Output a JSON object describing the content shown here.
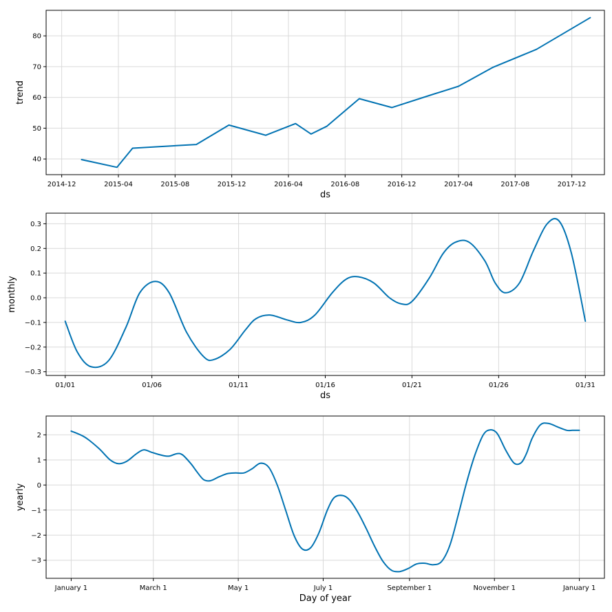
{
  "chart_data": [
    {
      "id": "trend",
      "type": "line",
      "title": "",
      "xlabel": "ds",
      "ylabel": "trend",
      "color": "#0072b2",
      "grid": true,
      "xlim": [
        -1.1,
        38.3
      ],
      "ylim": [
        34.9,
        88.3
      ],
      "x_ticks": [
        {
          "pos": 0,
          "label": "2014-12"
        },
        {
          "pos": 4,
          "label": "2015-04"
        },
        {
          "pos": 8,
          "label": "2015-08"
        },
        {
          "pos": 12,
          "label": "2015-12"
        },
        {
          "pos": 16,
          "label": "2016-04"
        },
        {
          "pos": 20,
          "label": "2016-08"
        },
        {
          "pos": 24,
          "label": "2016-12"
        },
        {
          "pos": 28,
          "label": "2017-04"
        },
        {
          "pos": 32,
          "label": "2017-08"
        },
        {
          "pos": 36,
          "label": "2017-12"
        }
      ],
      "y_ticks": [
        {
          "pos": 40,
          "label": "40"
        },
        {
          "pos": 50,
          "label": "50"
        },
        {
          "pos": 60,
          "label": "60"
        },
        {
          "pos": 70,
          "label": "70"
        },
        {
          "pos": 80,
          "label": "80"
        }
      ],
      "x_unit": "months since 2014-12",
      "series": [
        {
          "name": "trend",
          "x": [
            1.4,
            3.9,
            5.0,
            9.5,
            11.8,
            14.4,
            16.5,
            17.6,
            18.7,
            21.0,
            23.3,
            26.0,
            28.0,
            30.4,
            33.5,
            37.3
          ],
          "y": [
            39.8,
            37.3,
            43.5,
            44.7,
            51.0,
            47.7,
            51.5,
            48.1,
            50.6,
            59.6,
            56.7,
            60.7,
            63.6,
            69.7,
            75.6,
            85.9
          ]
        }
      ]
    },
    {
      "id": "monthly",
      "type": "line",
      "title": "",
      "xlabel": "ds",
      "ylabel": "monthly",
      "color": "#0072b2",
      "grid": true,
      "xlim": [
        -1.1,
        31.1
      ],
      "ylim": [
        -0.315,
        0.343
      ],
      "x_ticks": [
        {
          "pos": 0,
          "label": "01/01"
        },
        {
          "pos": 5,
          "label": "01/06"
        },
        {
          "pos": 10,
          "label": "01/11"
        },
        {
          "pos": 15,
          "label": "01/16"
        },
        {
          "pos": 20,
          "label": "01/21"
        },
        {
          "pos": 25,
          "label": "01/26"
        },
        {
          "pos": 30,
          "label": "01/31"
        }
      ],
      "y_ticks": [
        {
          "pos": -0.3,
          "label": "−0.3"
        },
        {
          "pos": -0.2,
          "label": "−0.2"
        },
        {
          "pos": -0.1,
          "label": "−0.1"
        },
        {
          "pos": 0.0,
          "label": "0.0"
        },
        {
          "pos": 0.1,
          "label": "0.1"
        },
        {
          "pos": 0.2,
          "label": "0.2"
        },
        {
          "pos": 0.3,
          "label": "0.3"
        }
      ],
      "x_unit": "day of month offset from 01/01",
      "series": [
        {
          "name": "monthly",
          "x": [
            0.0,
            0.7,
            1.5,
            2.5,
            3.5,
            4.3,
            5.2,
            6.0,
            7.0,
            8.0,
            8.6,
            9.5,
            10.4,
            11.0,
            11.8,
            12.8,
            13.6,
            14.4,
            15.4,
            16.2,
            16.9,
            17.8,
            18.7,
            19.4,
            20.0,
            21.0,
            21.8,
            22.5,
            23.3,
            24.2,
            24.8,
            25.4,
            26.2,
            27.0,
            27.8,
            28.5,
            29.2,
            30.0
          ],
          "y": [
            -0.095,
            -0.22,
            -0.28,
            -0.255,
            -0.12,
            0.02,
            0.066,
            0.02,
            -0.14,
            -0.24,
            -0.25,
            -0.21,
            -0.13,
            -0.085,
            -0.07,
            -0.09,
            -0.1,
            -0.07,
            0.02,
            0.075,
            0.085,
            0.06,
            0.0,
            -0.025,
            -0.015,
            0.08,
            0.18,
            0.225,
            0.225,
            0.15,
            0.06,
            0.02,
            0.06,
            0.19,
            0.3,
            0.31,
            0.18,
            -0.095
          ]
        }
      ]
    },
    {
      "id": "yearly",
      "type": "line",
      "title": "",
      "xlabel": "Day of year",
      "ylabel": "yearly",
      "color": "#0072b2",
      "grid": true,
      "xlim": [
        -18,
        383
      ],
      "ylim": [
        -3.72,
        2.75
      ],
      "x_ticks": [
        {
          "pos": 0,
          "label": "January 1"
        },
        {
          "pos": 59,
          "label": "March 1"
        },
        {
          "pos": 120,
          "label": "May 1"
        },
        {
          "pos": 181,
          "label": "July 1"
        },
        {
          "pos": 243,
          "label": "September 1"
        },
        {
          "pos": 304,
          "label": "November 1"
        },
        {
          "pos": 365,
          "label": "January 1"
        }
      ],
      "y_ticks": [
        {
          "pos": -3,
          "label": "−3"
        },
        {
          "pos": -2,
          "label": "−2"
        },
        {
          "pos": -1,
          "label": "−1"
        },
        {
          "pos": 0,
          "label": "0"
        },
        {
          "pos": 1,
          "label": "1"
        },
        {
          "pos": 2,
          "label": "2"
        }
      ],
      "x_unit": "day of year",
      "series": [
        {
          "name": "yearly",
          "x": [
            0,
            10,
            20,
            28,
            34,
            40,
            47,
            52,
            58,
            64,
            70,
            76,
            80,
            86,
            90,
            95,
            100,
            106,
            112,
            118,
            124,
            130,
            136,
            142,
            148,
            154,
            160,
            166,
            172,
            178,
            184,
            189,
            195,
            200,
            206,
            212,
            218,
            224,
            230,
            236,
            242,
            248,
            254,
            260,
            266,
            272,
            278,
            284,
            290,
            296,
            301,
            306,
            312,
            318,
            323,
            327,
            331,
            337,
            343,
            350,
            356,
            360,
            365
          ],
          "y": [
            2.15,
            1.9,
            1.45,
            1.0,
            0.85,
            0.95,
            1.25,
            1.4,
            1.3,
            1.2,
            1.15,
            1.25,
            1.2,
            0.85,
            0.55,
            0.22,
            0.17,
            0.32,
            0.45,
            0.48,
            0.48,
            0.65,
            0.87,
            0.7,
            0.0,
            -1.0,
            -2.0,
            -2.55,
            -2.5,
            -1.9,
            -1.0,
            -0.5,
            -0.42,
            -0.6,
            -1.1,
            -1.75,
            -2.45,
            -3.05,
            -3.4,
            -3.45,
            -3.33,
            -3.15,
            -3.12,
            -3.18,
            -3.05,
            -2.4,
            -1.2,
            0.1,
            1.2,
            2.0,
            2.2,
            2.05,
            1.4,
            0.88,
            0.88,
            1.25,
            1.85,
            2.4,
            2.45,
            2.3,
            2.18,
            2.18,
            2.18
          ]
        }
      ]
    }
  ]
}
